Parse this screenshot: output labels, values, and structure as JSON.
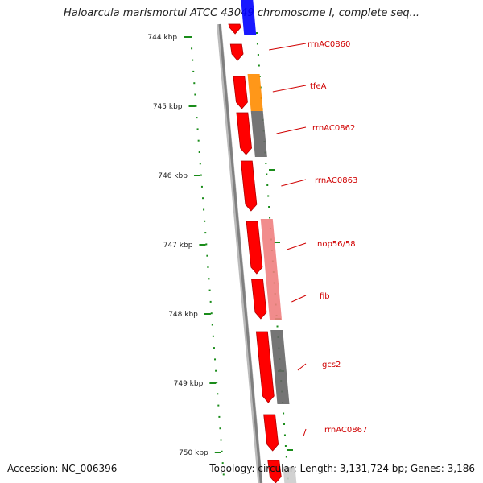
{
  "title": "Haloarcula marismortui ATCC 43049 chromosome I, complete seq...",
  "footer": {
    "accession": "Accession: NC_006396",
    "summary": "Topology: circular; Length: 3,131,724 bp; Genes: 3,186"
  },
  "ruler_ticks": [
    "744 kbp",
    "745 kbp",
    "746 kbp",
    "747 kbp",
    "748 kbp",
    "749 kbp",
    "750 kbp"
  ],
  "genes": [
    {
      "label": "rrnAC0860"
    },
    {
      "label": "tfeA"
    },
    {
      "label": "rrnAC0862"
    },
    {
      "label": "rrnAC0863"
    },
    {
      "label": "nop56/58"
    },
    {
      "label": "fib"
    },
    {
      "label": "gcs2"
    },
    {
      "label": "rrnAC0867"
    }
  ],
  "colors": {
    "cds_forward": "#ff0000",
    "backbone": "#808080",
    "ruler": "#1a8c1a",
    "label": "#d00000",
    "cog_blue": "#0000ff",
    "cog_orange": "#ff8c00",
    "cog_gray": "#666666",
    "cog_pink": "#f08080"
  }
}
